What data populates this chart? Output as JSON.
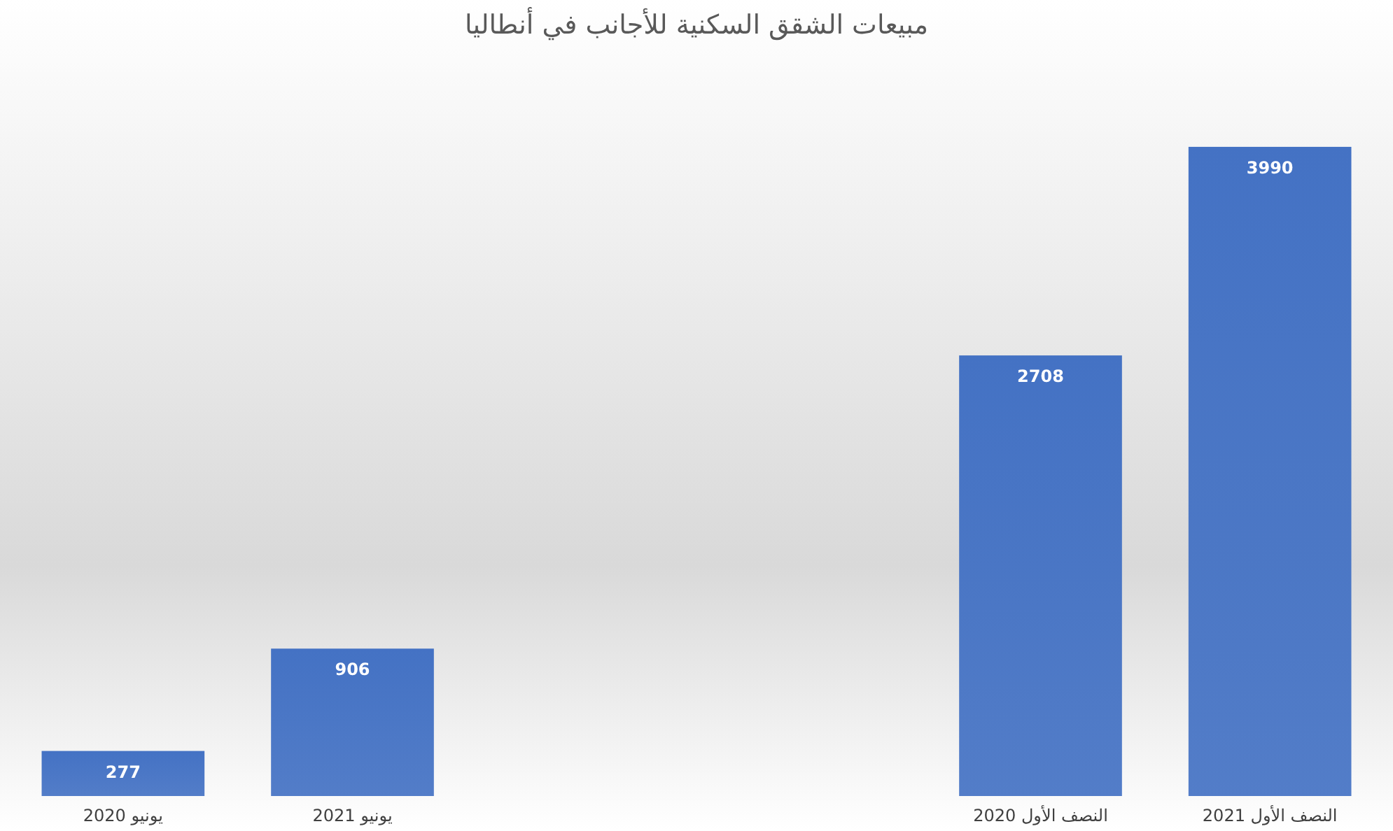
{
  "chart_data": {
    "type": "bar",
    "title": "مبيعات الشقق السكنية للأجانب في أنطاليا",
    "categories": [
      "يونيو 2020",
      "يونيو 2021",
      null,
      null,
      "النصف الأول 2020",
      "النصف الأول 2021"
    ],
    "values": [
      277,
      906,
      null,
      null,
      2708,
      3990
    ],
    "color": "#4472c4",
    "data_labels": true
  }
}
